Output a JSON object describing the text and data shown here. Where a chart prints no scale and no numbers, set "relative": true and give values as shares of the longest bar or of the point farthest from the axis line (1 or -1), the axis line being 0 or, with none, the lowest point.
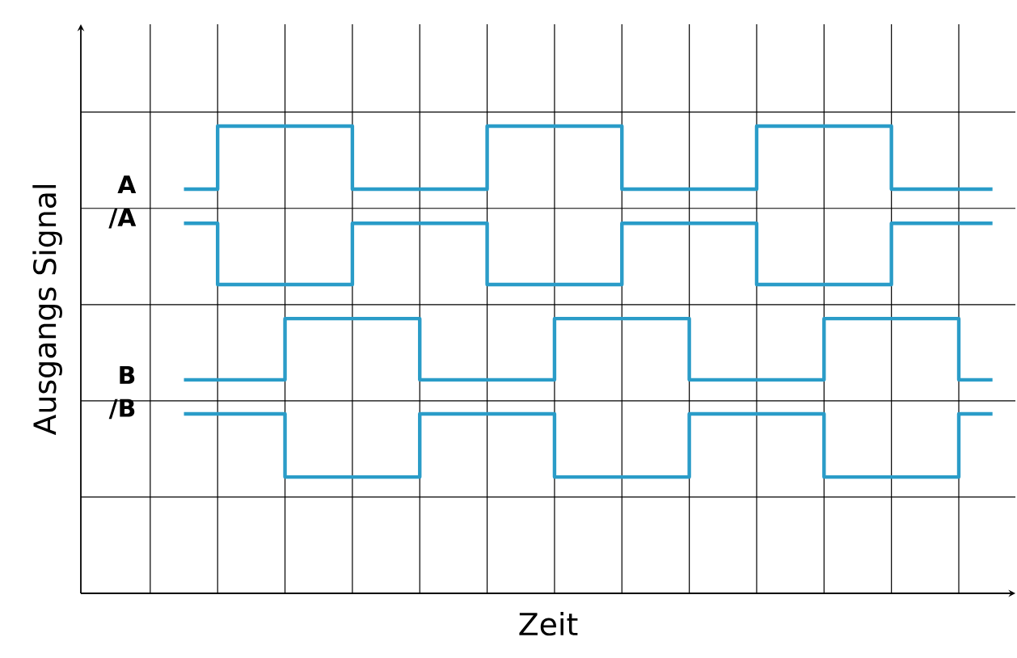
{
  "chart_data": {
    "type": "step",
    "relative": true,
    "grid": true,
    "xlabel": "Zeit",
    "ylabel": "Ausgangs Signal",
    "categories": [
      null,
      null,
      null,
      null,
      null,
      null,
      null,
      null,
      null,
      null,
      null,
      null,
      null,
      null,
      null,
      null,
      null,
      null,
      null,
      null,
      null,
      null,
      null,
      null,
      null,
      null
    ],
    "series": [
      {
        "name": "A",
        "color": "#2a9cc8",
        "values": [
          null,
          0.865,
          1,
          1,
          1,
          1,
          0.865,
          0.865,
          0.865,
          0.865,
          1,
          1,
          1,
          1,
          0.865,
          0.865,
          0.865,
          0.865,
          1,
          1,
          1,
          1,
          0.865,
          0.865,
          0.865,
          0.865
        ]
      },
      {
        "name": "/A",
        "color": "#2a9cc8",
        "values": [
          null,
          0.792,
          0.661,
          0.661,
          0.661,
          0.661,
          0.792,
          0.792,
          0.792,
          0.792,
          0.661,
          0.661,
          0.661,
          0.661,
          0.792,
          0.792,
          0.792,
          0.792,
          0.661,
          0.661,
          0.661,
          0.661,
          0.792,
          0.792,
          0.792,
          0.792
        ]
      },
      {
        "name": "B",
        "color": "#2a9cc8",
        "values": [
          null,
          0.457,
          0.457,
          0.457,
          0.588,
          0.588,
          0.588,
          0.588,
          0.457,
          0.457,
          0.457,
          0.457,
          0.588,
          0.588,
          0.588,
          0.588,
          0.457,
          0.457,
          0.457,
          0.457,
          0.588,
          0.588,
          0.588,
          0.588,
          0.457,
          0.457
        ]
      },
      {
        "name": "/B",
        "color": "#2a9cc8",
        "values": [
          null,
          0.384,
          0.384,
          0.384,
          0.249,
          0.249,
          0.249,
          0.249,
          0.384,
          0.384,
          0.384,
          0.384,
          0.249,
          0.249,
          0.249,
          0.249,
          0.384,
          0.384,
          0.384,
          0.384,
          0.249,
          0.249,
          0.249,
          0.249,
          0.384,
          0.384
        ]
      }
    ]
  }
}
